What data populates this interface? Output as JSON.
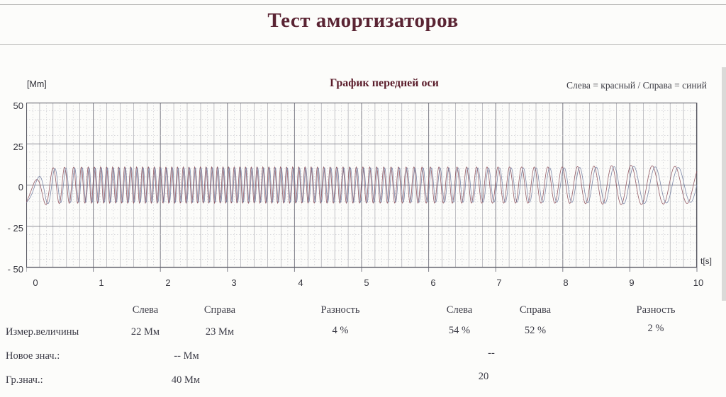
{
  "page": {
    "title": "Тест амортизаторов"
  },
  "chart": {
    "title": "График передней оси",
    "legend": "Слева = красный / Справа = синий",
    "y_unit": "[Mm]",
    "x_unit": "t[s]",
    "y_ticks": [
      "50",
      "25",
      "0",
      "- 25",
      "- 50"
    ],
    "x_ticks": [
      "0",
      "1",
      "2",
      "3",
      "4",
      "5",
      "6",
      "7",
      "8",
      "9",
      "10"
    ]
  },
  "chart_data": {
    "type": "line",
    "title": "График передней оси",
    "xlabel": "t[s]",
    "ylabel": "[Mm]",
    "xlim": [
      0,
      10
    ],
    "ylim": [
      -50,
      50
    ],
    "grid": true,
    "legend_position": "top-right",
    "description": "Shock-absorber plate oscillation, frequency sweep: starts at rest near -10 Mm, sweeps up to ~12 Hz dense oscillation of amplitude ~±11 Mm until ~5 s, then frequency decreases to ~2.6 Hz by 10 s; two nearly overlapping traces (left=red, right=blue) slightly out of phase.",
    "series": [
      {
        "name": "Слева",
        "color": "#8a4a55",
        "amp_scale": 1.0,
        "phase_rad": 0
      },
      {
        "name": "Справа",
        "color": "#6f7b9e",
        "amp_scale": 0.95,
        "phase_rad": -0.85
      }
    ],
    "frequency_profile_hz": {
      "t": [
        0,
        0.3,
        1,
        3,
        5,
        6,
        7,
        8,
        9,
        10
      ],
      "f": [
        1.2,
        4,
        11,
        12,
        10,
        8,
        6,
        4.5,
        3.3,
        2.6
      ]
    },
    "amplitude_profile_mm": {
      "t": [
        0,
        0.12,
        0.3,
        8,
        9,
        10
      ],
      "a": [
        0.5,
        6,
        11,
        11,
        12,
        11
      ]
    },
    "start_offset_mm": -10.5,
    "offset_decay_s": 0.13
  },
  "results": {
    "col_headers": [
      "Слева",
      "Справа",
      "Разность",
      "Слева",
      "Справа",
      "Разность"
    ],
    "rows": [
      {
        "label": "Измер.величины",
        "values": [
          "22 Мм",
          "23 Мм",
          "4 %",
          "54 %",
          "52 %",
          "2 %"
        ]
      },
      {
        "label": "Новое знач.:",
        "values": [
          "-- Мм",
          "--"
        ]
      },
      {
        "label": "Гр.знач.:",
        "values": [
          "40 Мм",
          "20"
        ]
      }
    ]
  }
}
